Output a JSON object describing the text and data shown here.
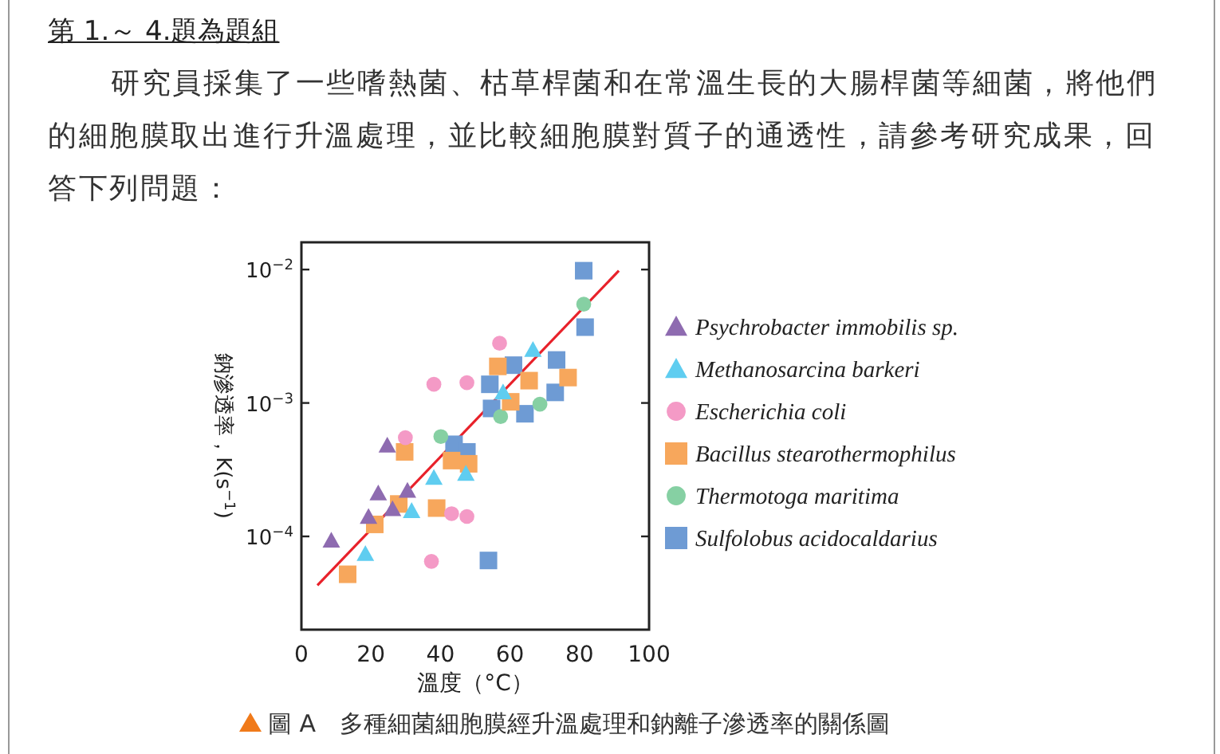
{
  "chart_data": {
    "type": "scatter",
    "title": "第 1.～ 4.題為題組",
    "subtitle": "研究員採集了一些嗜熱菌、枯草桿菌和在常溫生長的大腸桿菌等細菌，將他們的細胞膜取出進行升溫處理，並比較細胞膜對質子的通透性，請參考研究成果，回答下列問題：",
    "annotations": [
      "圖 A　多種細菌細胞膜經升溫處理和鈉離子滲透率的關係圖"
    ],
    "xlabel": "溫度（°C）",
    "ylabel": "鈉滲透率，K(s$^{−1}$)",
    "log": "y",
    "xlim": [
      0,
      100
    ],
    "xticks": [
      0,
      20,
      40,
      60,
      80,
      100
    ],
    "ylim": [
      2e-05,
      0.016
    ],
    "yticks": [
      {
        "value": 0.0001,
        "label": "10$^{−4}$"
      },
      {
        "value": 0.001,
        "label": "10$^{−3}$"
      },
      {
        "value": 0.01,
        "label": "10$^{−2}$"
      }
    ],
    "grid": false,
    "legend": "right",
    "series": [
      {
        "name": "Psychrobacter immobilis sp.",
        "color": "#8e6bb0",
        "marker": "triangle",
        "x": [
          8.6,
          19.3,
          22.1,
          24.7,
          26.2,
          30.5
        ],
        "values": [
          9.3e-05,
          0.00014,
          0.00021,
          0.00048,
          0.00016,
          0.00022
        ]
      },
      {
        "name": "Methanosarcina barkeri",
        "color": "#5fcdf0",
        "marker": "triangle",
        "x": [
          18.4,
          31.7,
          38.1,
          47.3,
          58.0,
          66.6
        ],
        "values": [
          7.4e-05,
          0.000155,
          0.000275,
          0.000295,
          0.0012,
          0.0025
        ]
      },
      {
        "name": "Escherichia coli",
        "color": "#f49ac6",
        "marker": "circle",
        "x": [
          29.9,
          38.1,
          37.4,
          43.2,
          47.6,
          47.6,
          57.0
        ],
        "values": [
          0.00055,
          0.00138,
          6.5e-05,
          0.000148,
          0.000141,
          0.00142,
          0.0028
        ]
      },
      {
        "name": "Bacillus stearothermophilus",
        "color": "#f7a75c",
        "marker": "square",
        "x": [
          13.3,
          21.1,
          28.0,
          29.7,
          38.9,
          43.2,
          48.1,
          56.5,
          60.2,
          65.5,
          76.7
        ],
        "values": [
          5.2e-05,
          0.000123,
          0.000175,
          0.00043,
          0.000163,
          0.00037,
          0.00035,
          0.00188,
          0.00102,
          0.00147,
          0.00155
        ]
      },
      {
        "name": "Thermotoga maritima",
        "color": "#86d0a3",
        "marker": "circle",
        "x": [
          40.1,
          57.3,
          68.6,
          81.2
        ],
        "values": [
          0.00056,
          0.00079,
          0.00098,
          0.0055
        ]
      },
      {
        "name": "Sulfolobus acidocaldarius",
        "color": "#6e9bd4",
        "marker": "square",
        "x": [
          43.9,
          47.6,
          53.8,
          54.2,
          54.7,
          61.0,
          64.3,
          73.0,
          73.4,
          81.2,
          81.6
        ],
        "values": [
          0.00049,
          0.00043,
          6.6e-05,
          0.00138,
          0.00091,
          0.00192,
          0.00083,
          0.0012,
          0.0021,
          0.0098,
          0.0037
        ]
      },
      {
        "type": "line",
        "color": "#e8212a",
        "x": [
          4.6,
          91.3
        ],
        "values": [
          4.3e-05,
          0.0098
        ]
      }
    ]
  }
}
